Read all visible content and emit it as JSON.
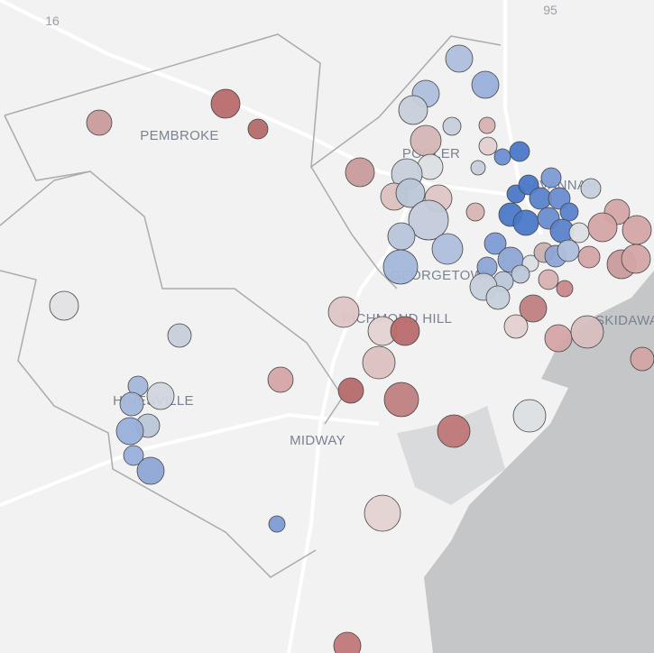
{
  "map": {
    "highways": [
      "16",
      "95"
    ],
    "places": [
      "PEMBROKE",
      "POOLER",
      "SAVANNAH",
      "GEORGETOWN",
      "RICHMOND HILL",
      "SKIDAWAY",
      "MIDWAY",
      "HINESVILLE"
    ]
  }
}
